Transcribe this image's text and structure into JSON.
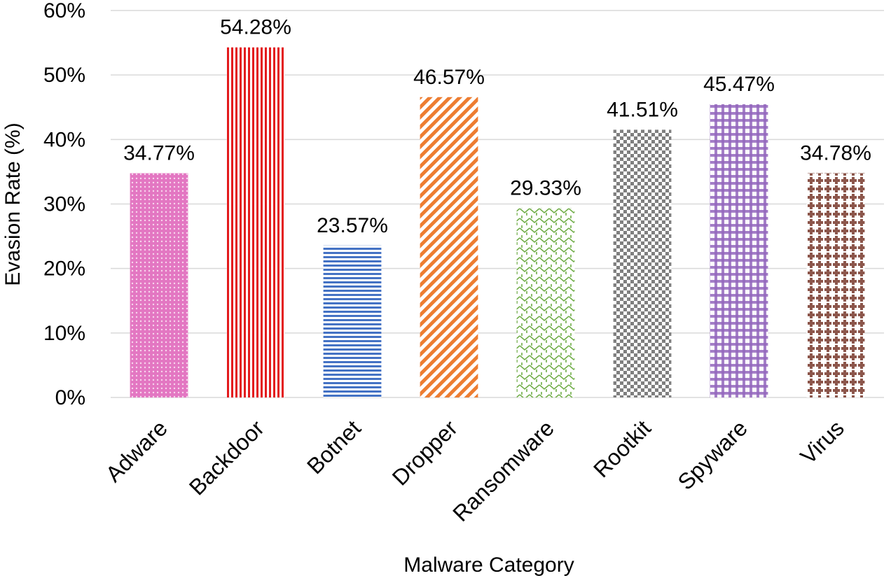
{
  "chart_data": {
    "type": "bar",
    "title": "",
    "xlabel": "Malware Category",
    "ylabel": "Evasion Rate (%)",
    "ylim": [
      0,
      60
    ],
    "yticks": [
      "0%",
      "10%",
      "20%",
      "30%",
      "40%",
      "50%",
      "60%"
    ],
    "grid": true,
    "categories": [
      "Adware",
      "Backdoor",
      "Botnet",
      "Dropper",
      "Ransomware",
      "Rootkit",
      "Spyware",
      "Virus"
    ],
    "values": [
      34.77,
      54.28,
      23.57,
      46.57,
      29.33,
      41.51,
      45.47,
      34.78
    ],
    "data_labels": [
      "34.77%",
      "54.28%",
      "23.57%",
      "46.57%",
      "29.33%",
      "41.51%",
      "45.47%",
      "34.78%"
    ],
    "bar_colors": [
      "#e377c2",
      "#e31a1c",
      "#4472c4",
      "#ed7d31",
      "#70ad47",
      "#7f7f7f",
      "#9467bd",
      "#8c564b"
    ],
    "bar_patterns": [
      "dots",
      "vertical-stripes",
      "horizontal-stripes",
      "diagonal-stripes",
      "zigzag",
      "checker",
      "plaid",
      "plus"
    ]
  }
}
